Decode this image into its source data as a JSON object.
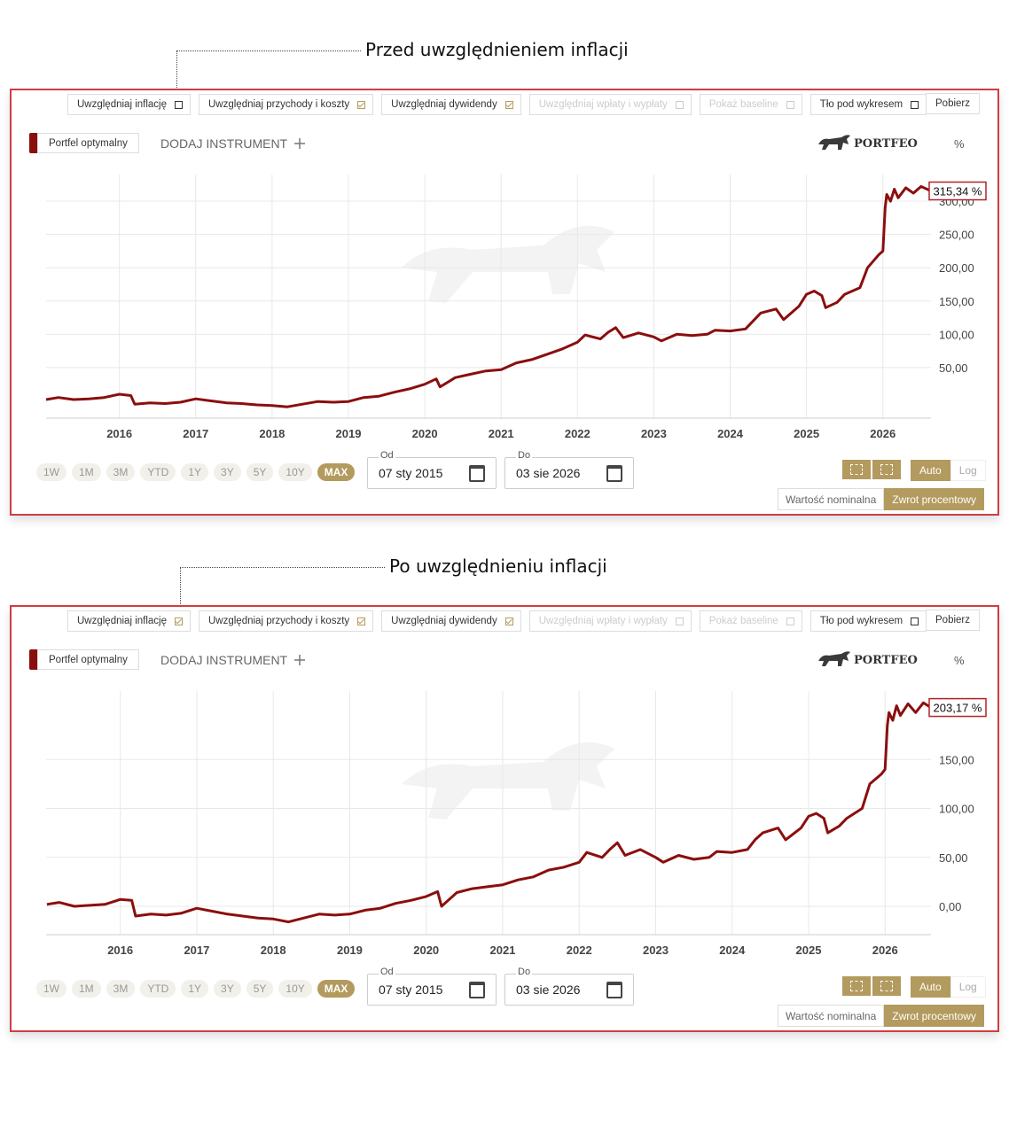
{
  "panels": [
    {
      "caption": "Przed uwzględnieniem inflacji",
      "toolbar": {
        "options": [
          {
            "label": "Uwzględniaj inflację",
            "checked": false,
            "disabled": false
          },
          {
            "label": "Uwzględniaj przychody i koszty",
            "checked": true,
            "disabled": false
          },
          {
            "label": "Uwzględniaj dywidendy",
            "checked": true,
            "disabled": false
          },
          {
            "label": "Uwzględniaj wpłaty i wypłaty",
            "checked": false,
            "disabled": true
          },
          {
            "label": "Pokaż baseline",
            "checked": false,
            "disabled": true
          },
          {
            "label": "Tło pod wykresem",
            "checked": false,
            "disabled": false
          }
        ],
        "download": "Pobierz"
      },
      "legend": {
        "series": "Portfel optymalny",
        "add": "DODAJ INSTRUMENT",
        "brand": "PORTFEO",
        "unit": "%"
      },
      "chart_data": {
        "type": "line",
        "color": "#8b0e0e",
        "grid": true,
        "xlim": [
          2015.04,
          2026.63
        ],
        "xticks": [
          2016,
          2017,
          2018,
          2019,
          2020,
          2021,
          2022,
          2023,
          2024,
          2025,
          2026
        ],
        "ylim": [
          -26,
          340
        ],
        "yticks": [
          {
            "value": 50,
            "label": "50,00"
          },
          {
            "value": 100,
            "label": "100,00"
          },
          {
            "value": 150,
            "label": "150,00"
          },
          {
            "value": 200,
            "label": "200,00"
          },
          {
            "value": 250,
            "label": "250,00"
          },
          {
            "value": 300,
            "label": "300,00"
          }
        ],
        "x": [
          2015.04,
          2015.2,
          2015.4,
          2015.6,
          2015.8,
          2016.0,
          2016.15,
          2016.2,
          2016.4,
          2016.6,
          2016.8,
          2017.0,
          2017.2,
          2017.4,
          2017.6,
          2017.8,
          2018.0,
          2018.2,
          2018.4,
          2018.6,
          2018.8,
          2019.0,
          2019.2,
          2019.4,
          2019.6,
          2019.8,
          2020.0,
          2020.15,
          2020.2,
          2020.4,
          2020.6,
          2020.8,
          2021.0,
          2021.2,
          2021.4,
          2021.6,
          2021.8,
          2022.0,
          2022.1,
          2022.3,
          2022.4,
          2022.5,
          2022.6,
          2022.8,
          2023.0,
          2023.1,
          2023.3,
          2023.5,
          2023.7,
          2023.8,
          2024.0,
          2024.2,
          2024.3,
          2024.4,
          2024.6,
          2024.7,
          2024.9,
          2025.0,
          2025.1,
          2025.2,
          2025.25,
          2025.4,
          2025.5,
          2025.7,
          2025.8,
          2025.95,
          2026.0,
          2026.03,
          2026.05,
          2026.1,
          2026.15,
          2026.2,
          2026.3,
          2026.4,
          2026.5,
          2026.63
        ],
        "values": [
          2,
          5,
          2,
          3,
          5,
          10,
          8,
          -5,
          -3,
          -4,
          -2,
          3,
          0,
          -3,
          -4,
          -6,
          -7,
          -9,
          -5,
          -1,
          -2,
          -1,
          5,
          7,
          13,
          18,
          25,
          33,
          21,
          35,
          40,
          45,
          47,
          57,
          62,
          70,
          78,
          88,
          99,
          93,
          103,
          110,
          95,
          102,
          96,
          90,
          100,
          98,
          100,
          106,
          105,
          108,
          120,
          132,
          138,
          122,
          142,
          160,
          165,
          158,
          140,
          148,
          160,
          170,
          200,
          220,
          225,
          290,
          310,
          300,
          318,
          305,
          320,
          312,
          322,
          315.34
        ],
        "last_value_label": "315,34 %"
      },
      "controls": {
        "ranges": [
          "1W",
          "1M",
          "3M",
          "YTD",
          "1Y",
          "3Y",
          "5Y",
          "10Y",
          "MAX"
        ],
        "active_range": 8,
        "from_label": "Od",
        "from": "07 sty 2015",
        "to_label": "Do",
        "to": "03 sie 2026",
        "scales": [
          "Auto",
          "Log"
        ],
        "active_scale": 0,
        "modes": [
          "Wartość nominalna",
          "Zwrot procentowy"
        ],
        "active_mode": 1
      }
    },
    {
      "caption": "Po uwzględnieniu inflacji",
      "toolbar": {
        "options": [
          {
            "label": "Uwzględniaj inflację",
            "checked": true,
            "disabled": false
          },
          {
            "label": "Uwzględniaj przychody i koszty",
            "checked": true,
            "disabled": false
          },
          {
            "label": "Uwzględniaj dywidendy",
            "checked": true,
            "disabled": false
          },
          {
            "label": "Uwzględniaj wpłaty i wypłaty",
            "checked": false,
            "disabled": true
          },
          {
            "label": "Pokaż baseline",
            "checked": false,
            "disabled": true
          },
          {
            "label": "Tło pod wykresem",
            "checked": false,
            "disabled": false
          }
        ],
        "download": "Pobierz"
      },
      "legend": {
        "series": "Portfel optymalny",
        "add": "DODAJ INSTRUMENT",
        "brand": "PORTFEO",
        "unit": "%"
      },
      "chart_data": {
        "type": "line",
        "color": "#8b0e0e",
        "grid": true,
        "xlim": [
          2015.03,
          2026.6
        ],
        "xticks": [
          2016,
          2017,
          2018,
          2019,
          2020,
          2021,
          2022,
          2023,
          2024,
          2025,
          2026
        ],
        "ylim": [
          -29,
          220
        ],
        "yticks": [
          {
            "value": 0,
            "label": "0,00"
          },
          {
            "value": 50,
            "label": "50,00"
          },
          {
            "value": 100,
            "label": "100,00"
          },
          {
            "value": 150,
            "label": "150,00"
          }
        ],
        "x": [
          2015.04,
          2015.2,
          2015.4,
          2015.6,
          2015.8,
          2016.0,
          2016.15,
          2016.2,
          2016.4,
          2016.6,
          2016.8,
          2017.0,
          2017.2,
          2017.4,
          2017.6,
          2017.8,
          2018.0,
          2018.2,
          2018.4,
          2018.6,
          2018.8,
          2019.0,
          2019.2,
          2019.4,
          2019.6,
          2019.8,
          2020.0,
          2020.15,
          2020.2,
          2020.4,
          2020.6,
          2020.8,
          2021.0,
          2021.2,
          2021.4,
          2021.6,
          2021.8,
          2022.0,
          2022.1,
          2022.3,
          2022.4,
          2022.5,
          2022.6,
          2022.8,
          2023.0,
          2023.1,
          2023.3,
          2023.5,
          2023.7,
          2023.8,
          2024.0,
          2024.2,
          2024.3,
          2024.4,
          2024.6,
          2024.7,
          2024.9,
          2025.0,
          2025.1,
          2025.2,
          2025.25,
          2025.4,
          2025.5,
          2025.7,
          2025.8,
          2025.95,
          2026.0,
          2026.03,
          2026.05,
          2026.1,
          2026.15,
          2026.2,
          2026.3,
          2026.4,
          2026.5,
          2026.6
        ],
        "values": [
          2,
          4,
          0,
          1,
          2,
          7,
          6,
          -10,
          -8,
          -9,
          -7,
          -2,
          -5,
          -8,
          -10,
          -12,
          -13,
          -16,
          -12,
          -8,
          -9,
          -8,
          -4,
          -2,
          3,
          6,
          10,
          15,
          0,
          14,
          18,
          20,
          22,
          27,
          30,
          37,
          40,
          45,
          55,
          50,
          58,
          65,
          52,
          58,
          50,
          45,
          52,
          48,
          50,
          56,
          55,
          58,
          68,
          75,
          80,
          68,
          80,
          92,
          95,
          90,
          75,
          82,
          90,
          100,
          125,
          135,
          140,
          185,
          198,
          190,
          205,
          195,
          207,
          198,
          208,
          203.17
        ],
        "last_value_label": "203,17 %"
      },
      "controls": {
        "ranges": [
          "1W",
          "1M",
          "3M",
          "YTD",
          "1Y",
          "3Y",
          "5Y",
          "10Y",
          "MAX"
        ],
        "active_range": 8,
        "from_label": "Od",
        "from": "07 sty 2015",
        "to_label": "Do",
        "to": "03 sie 2026",
        "scales": [
          "Auto",
          "Log"
        ],
        "active_scale": 0,
        "modes": [
          "Wartość nominalna",
          "Zwrot procentowy"
        ],
        "active_mode": 1
      }
    }
  ]
}
